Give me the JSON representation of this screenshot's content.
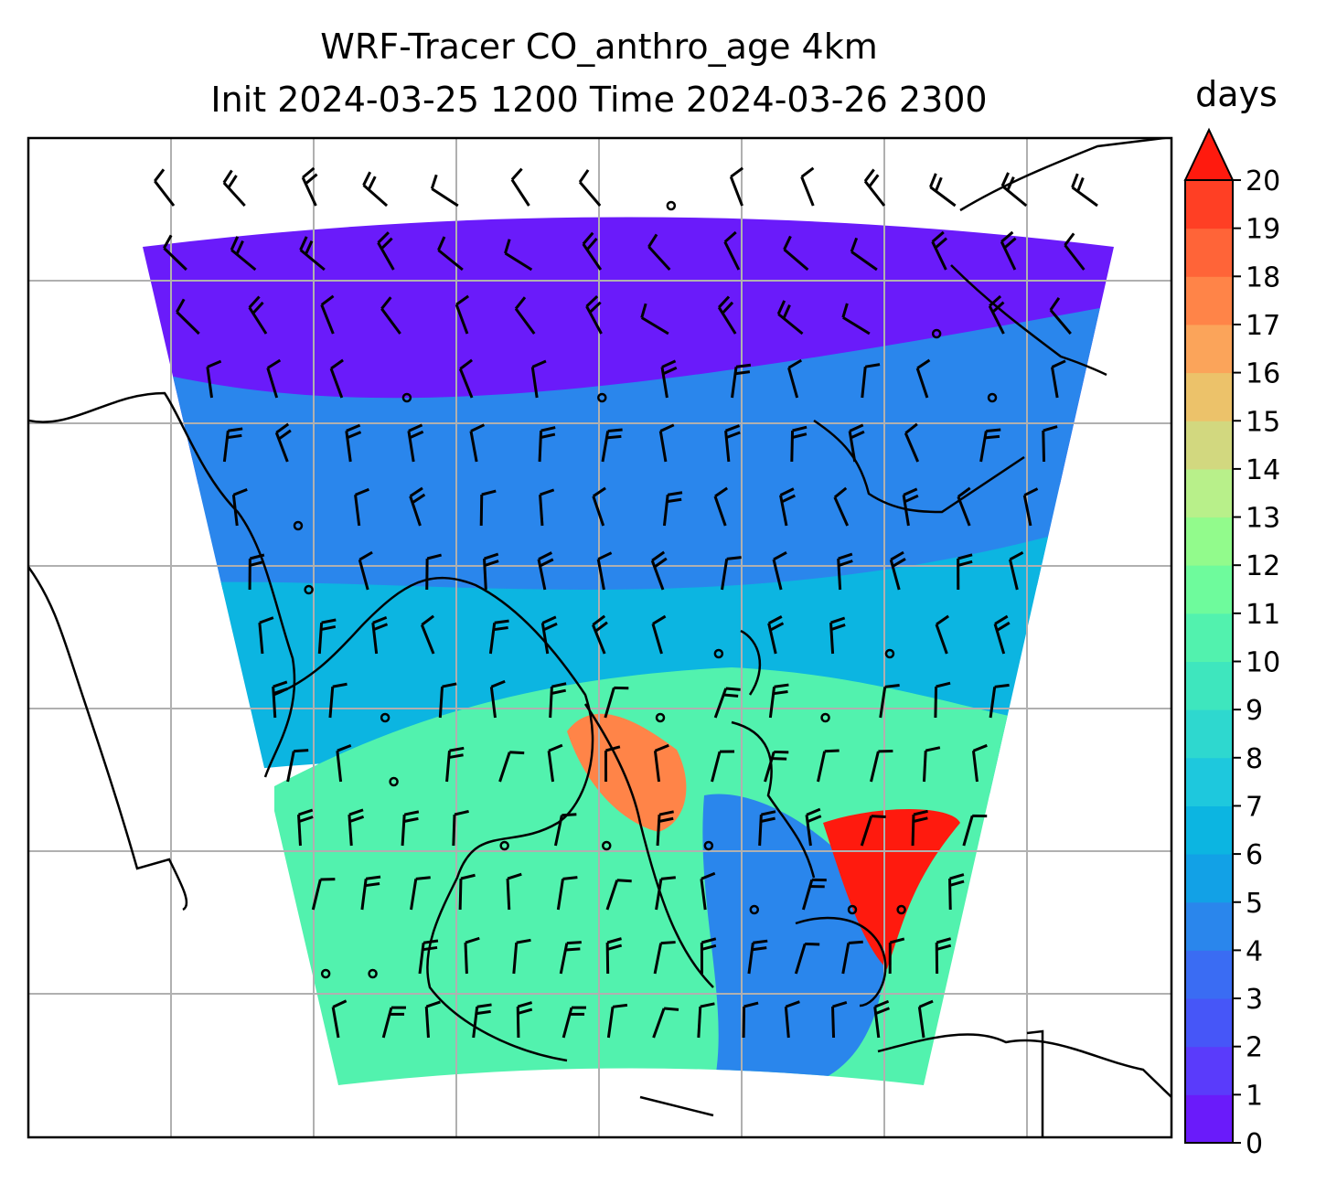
{
  "title": {
    "line1": "WRF-Tracer CO_anthro_age 4km",
    "line2": "Init 2024-03-25 1200 Time 2024-03-26 2300"
  },
  "colorbar": {
    "unit": "days",
    "ticks": [
      "0",
      "1",
      "2",
      "3",
      "4",
      "5",
      "6",
      "7",
      "8",
      "9",
      "10",
      "11",
      "12",
      "13",
      "14",
      "15",
      "16",
      "17",
      "18",
      "19",
      "20"
    ],
    "extend": "max",
    "colors": [
      "#6a1bfa",
      "#5a3bfb",
      "#4656f8",
      "#3a6cf3",
      "#2a86ec",
      "#12a1e6",
      "#0cb5e1",
      "#1ec8dd",
      "#2ed8cf",
      "#3ee6be",
      "#52f2ae",
      "#6efb9c",
      "#92fb8c",
      "#b8f08a",
      "#d2d87f",
      "#ecc26a",
      "#fba45a",
      "#ff8448",
      "#ff6438",
      "#ff3f24"
    ],
    "over_color": "#ff1a0e"
  },
  "map": {
    "domain_color_regions": {
      "north_band": "#6a1bfa",
      "mid_band": "#2a86ec",
      "central_band": "#0cb5e1",
      "south_sea": "#52f2ae",
      "warm_core": "#ff8448",
      "hot_spot": "#ff1a0e"
    },
    "gridlines": true,
    "coastline_color": "#000000",
    "wind_barbs": true
  }
}
